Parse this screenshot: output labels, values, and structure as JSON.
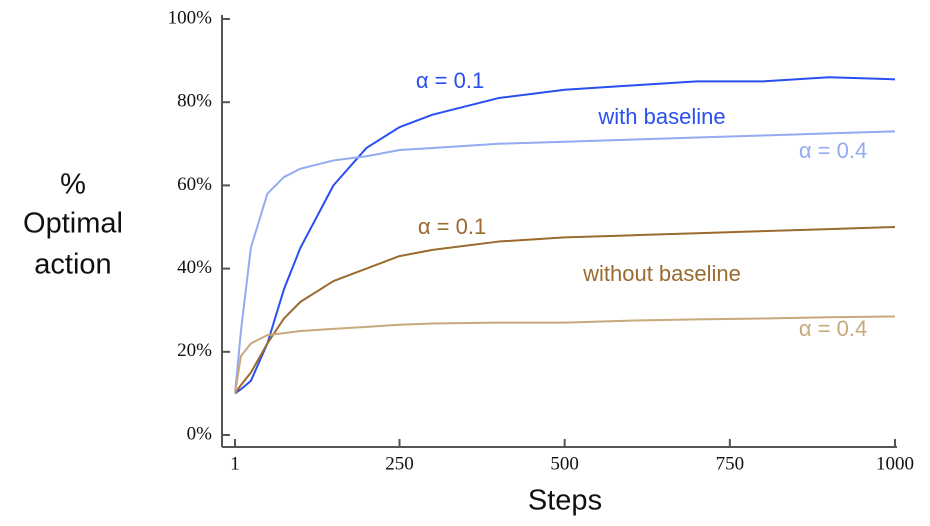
{
  "chart_data": {
    "type": "line",
    "xlabel": "Steps",
    "ylabel": [
      "%",
      "Optimal",
      "action"
    ],
    "x": [
      1,
      10,
      25,
      50,
      75,
      100,
      150,
      200,
      250,
      300,
      400,
      500,
      600,
      700,
      800,
      900,
      1000
    ],
    "series": [
      {
        "color": "#2a4ff0",
        "values": [
          10,
          11,
          13,
          22,
          35,
          45,
          60,
          69,
          74,
          77,
          81,
          83,
          84,
          85,
          85,
          86,
          85.5
        ]
      },
      {
        "color": "#92abf2",
        "values": [
          10,
          25,
          45,
          58,
          62,
          64,
          66,
          67,
          68.5,
          69,
          70,
          70.5,
          71,
          71.5,
          72,
          72.5,
          73
        ]
      },
      {
        "color": "#9a6a2e",
        "values": [
          10,
          12,
          15,
          22,
          28,
          32,
          37,
          40,
          43,
          44.5,
          46.5,
          47.5,
          48,
          48.5,
          49,
          49.5,
          50
        ]
      },
      {
        "color": "#c8a87c",
        "values": [
          10,
          19,
          22,
          24,
          24.5,
          25,
          25.5,
          26,
          26.5,
          26.8,
          27,
          27,
          27.5,
          27.8,
          28,
          28.3,
          28.5
        ]
      }
    ],
    "annotations": [
      {
        "text": "α = 0.1",
        "color": "#2a4ff0"
      },
      {
        "text": "with baseline",
        "color": "#2a4ff0"
      },
      {
        "text": "α = 0.4",
        "color": "#92abf2"
      },
      {
        "text": "α = 0.1",
        "color": "#9a6a2e"
      },
      {
        "text": "without baseline",
        "color": "#9a6a2e"
      },
      {
        "text": "α = 0.4",
        "color": "#c8a87c"
      }
    ],
    "xlim": [
      1,
      1000
    ],
    "xticks": [
      1,
      250,
      500,
      750,
      1000
    ],
    "ylim": [
      0,
      100
    ],
    "yticks": [
      {
        "value": 0,
        "label": "0%"
      },
      {
        "value": 20,
        "label": "20%"
      },
      {
        "value": 40,
        "label": "40%"
      },
      {
        "value": 60,
        "label": "60%"
      },
      {
        "value": 80,
        "label": "80%"
      },
      {
        "value": 100,
        "label": "100%"
      }
    ]
  }
}
